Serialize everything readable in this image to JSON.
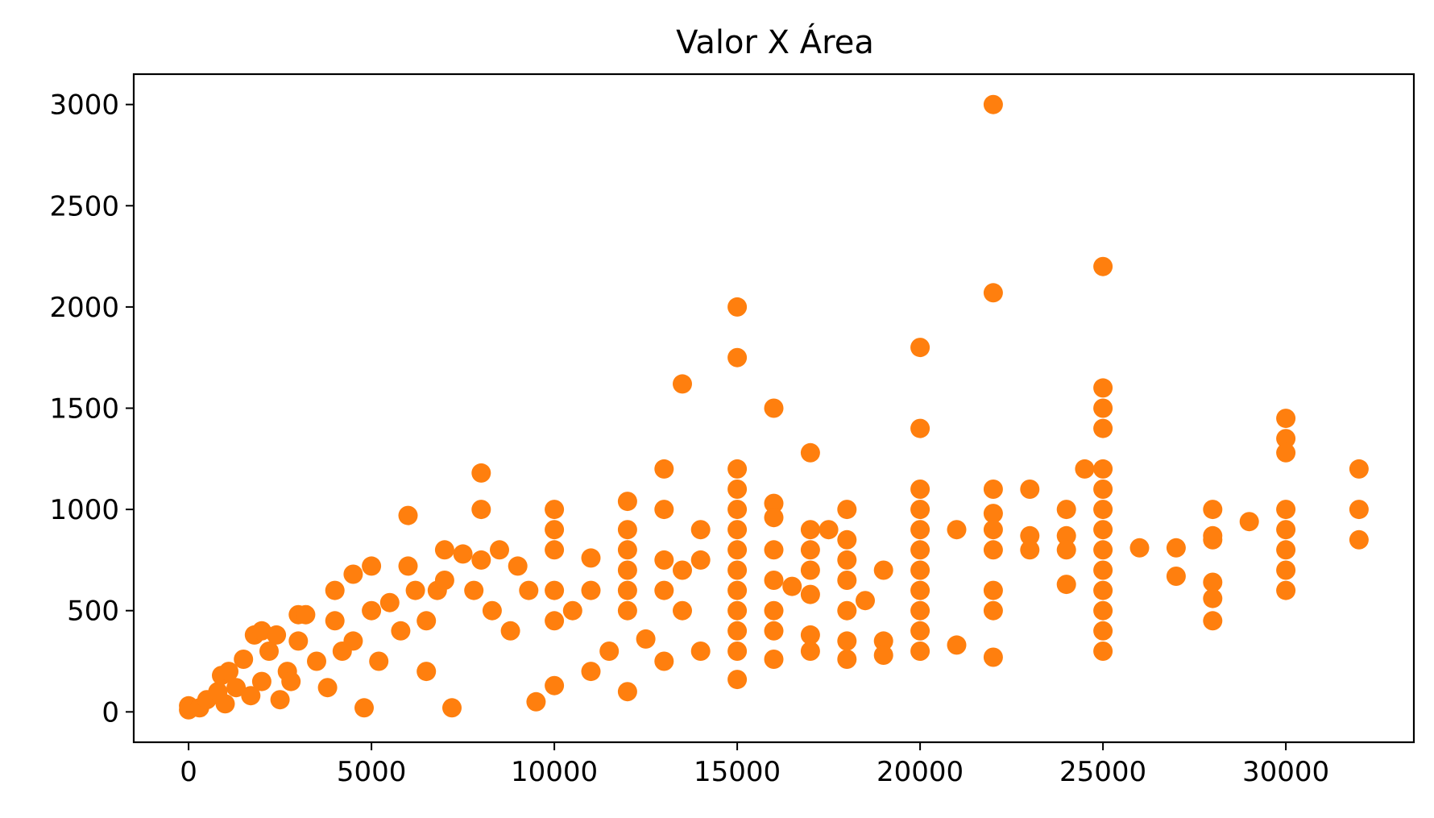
{
  "chart_data": {
    "type": "scatter",
    "title": "Valor X Área",
    "xlabel": "",
    "ylabel": "",
    "xlim": [
      -1500,
      33500
    ],
    "ylim": [
      -150,
      3150
    ],
    "xticks": [
      0,
      5000,
      10000,
      15000,
      20000,
      25000,
      30000
    ],
    "yticks": [
      0,
      500,
      1000,
      1500,
      2000,
      2500,
      3000
    ],
    "xtick_labels": [
      "0",
      "5000",
      "10000",
      "15000",
      "20000",
      "25000",
      "30000"
    ],
    "ytick_labels": [
      "0",
      "500",
      "1000",
      "1500",
      "2000",
      "2500",
      "3000"
    ],
    "grid": false,
    "marker_color": "#ff7f0e",
    "series": [
      {
        "points": [
          [
            0,
            30
          ],
          [
            0,
            10
          ],
          [
            300,
            20
          ],
          [
            500,
            60
          ],
          [
            800,
            100
          ],
          [
            900,
            180
          ],
          [
            1000,
            40
          ],
          [
            1100,
            200
          ],
          [
            1300,
            120
          ],
          [
            1500,
            260
          ],
          [
            1700,
            80
          ],
          [
            1800,
            380
          ],
          [
            2000,
            400
          ],
          [
            2000,
            150
          ],
          [
            2200,
            300
          ],
          [
            2400,
            380
          ],
          [
            2500,
            60
          ],
          [
            2700,
            200
          ],
          [
            2800,
            150
          ],
          [
            3000,
            480
          ],
          [
            3000,
            350
          ],
          [
            3200,
            480
          ],
          [
            3500,
            250
          ],
          [
            3800,
            120
          ],
          [
            4000,
            600
          ],
          [
            4000,
            450
          ],
          [
            4200,
            300
          ],
          [
            4500,
            680
          ],
          [
            4500,
            350
          ],
          [
            4800,
            20
          ],
          [
            5000,
            720
          ],
          [
            5000,
            500
          ],
          [
            5200,
            250
          ],
          [
            5500,
            540
          ],
          [
            5800,
            400
          ],
          [
            6000,
            970
          ],
          [
            6000,
            720
          ],
          [
            6200,
            600
          ],
          [
            6500,
            450
          ],
          [
            6500,
            200
          ],
          [
            6800,
            600
          ],
          [
            7000,
            800
          ],
          [
            7000,
            650
          ],
          [
            7200,
            20
          ],
          [
            7500,
            780
          ],
          [
            7800,
            600
          ],
          [
            8000,
            1180
          ],
          [
            8000,
            1000
          ],
          [
            8000,
            750
          ],
          [
            8300,
            500
          ],
          [
            8500,
            800
          ],
          [
            8800,
            400
          ],
          [
            9000,
            720
          ],
          [
            9300,
            600
          ],
          [
            9500,
            50
          ],
          [
            10000,
            1000
          ],
          [
            10000,
            900
          ],
          [
            10000,
            800
          ],
          [
            10000,
            600
          ],
          [
            10000,
            450
          ],
          [
            10000,
            130
          ],
          [
            10500,
            500
          ],
          [
            11000,
            760
          ],
          [
            11000,
            600
          ],
          [
            11000,
            200
          ],
          [
            11500,
            300
          ],
          [
            12000,
            1040
          ],
          [
            12000,
            900
          ],
          [
            12000,
            800
          ],
          [
            12000,
            700
          ],
          [
            12000,
            600
          ],
          [
            12000,
            500
          ],
          [
            12000,
            100
          ],
          [
            12500,
            360
          ],
          [
            13000,
            1200
          ],
          [
            13000,
            1000
          ],
          [
            13000,
            750
          ],
          [
            13000,
            600
          ],
          [
            13000,
            250
          ],
          [
            13500,
            1620
          ],
          [
            13500,
            700
          ],
          [
            13500,
            500
          ],
          [
            14000,
            900
          ],
          [
            14000,
            750
          ],
          [
            14000,
            300
          ],
          [
            15000,
            2000
          ],
          [
            15000,
            1750
          ],
          [
            15000,
            1200
          ],
          [
            15000,
            1100
          ],
          [
            15000,
            1000
          ],
          [
            15000,
            900
          ],
          [
            15000,
            800
          ],
          [
            15000,
            700
          ],
          [
            15000,
            600
          ],
          [
            15000,
            500
          ],
          [
            15000,
            400
          ],
          [
            15000,
            300
          ],
          [
            15000,
            160
          ],
          [
            16000,
            1500
          ],
          [
            16000,
            1030
          ],
          [
            16000,
            960
          ],
          [
            16000,
            800
          ],
          [
            16000,
            650
          ],
          [
            16000,
            500
          ],
          [
            16000,
            400
          ],
          [
            16000,
            260
          ],
          [
            16500,
            620
          ],
          [
            17000,
            1280
          ],
          [
            17000,
            900
          ],
          [
            17000,
            800
          ],
          [
            17000,
            700
          ],
          [
            17000,
            580
          ],
          [
            17000,
            380
          ],
          [
            17000,
            300
          ],
          [
            17500,
            900
          ],
          [
            18000,
            1000
          ],
          [
            18000,
            850
          ],
          [
            18000,
            750
          ],
          [
            18000,
            650
          ],
          [
            18000,
            500
          ],
          [
            18000,
            350
          ],
          [
            18000,
            260
          ],
          [
            18500,
            550
          ],
          [
            19000,
            700
          ],
          [
            19000,
            350
          ],
          [
            19000,
            280
          ],
          [
            20000,
            1800
          ],
          [
            20000,
            1400
          ],
          [
            20000,
            1100
          ],
          [
            20000,
            1000
          ],
          [
            20000,
            900
          ],
          [
            20000,
            800
          ],
          [
            20000,
            700
          ],
          [
            20000,
            600
          ],
          [
            20000,
            500
          ],
          [
            20000,
            400
          ],
          [
            20000,
            300
          ],
          [
            21000,
            900
          ],
          [
            21000,
            330
          ],
          [
            22000,
            3000
          ],
          [
            22000,
            2070
          ],
          [
            22000,
            1100
          ],
          [
            22000,
            980
          ],
          [
            22000,
            900
          ],
          [
            22000,
            800
          ],
          [
            22000,
            600
          ],
          [
            22000,
            500
          ],
          [
            22000,
            270
          ],
          [
            23000,
            1100
          ],
          [
            23000,
            870
          ],
          [
            23000,
            800
          ],
          [
            24000,
            1000
          ],
          [
            24000,
            870
          ],
          [
            24000,
            800
          ],
          [
            24000,
            630
          ],
          [
            24500,
            1200
          ],
          [
            25000,
            2200
          ],
          [
            25000,
            1600
          ],
          [
            25000,
            1500
          ],
          [
            25000,
            1400
          ],
          [
            25000,
            1200
          ],
          [
            25000,
            1100
          ],
          [
            25000,
            1000
          ],
          [
            25000,
            900
          ],
          [
            25000,
            800
          ],
          [
            25000,
            700
          ],
          [
            25000,
            600
          ],
          [
            25000,
            500
          ],
          [
            25000,
            400
          ],
          [
            25000,
            300
          ],
          [
            26000,
            810
          ],
          [
            27000,
            810
          ],
          [
            27000,
            670
          ],
          [
            28000,
            1000
          ],
          [
            28000,
            870
          ],
          [
            28000,
            850
          ],
          [
            28000,
            640
          ],
          [
            28000,
            560
          ],
          [
            28000,
            450
          ],
          [
            29000,
            940
          ],
          [
            30000,
            1450
          ],
          [
            30000,
            1350
          ],
          [
            30000,
            1280
          ],
          [
            30000,
            1000
          ],
          [
            30000,
            900
          ],
          [
            30000,
            800
          ],
          [
            30000,
            700
          ],
          [
            30000,
            600
          ],
          [
            32000,
            1200
          ],
          [
            32000,
            1000
          ],
          [
            32000,
            850
          ]
        ]
      }
    ]
  }
}
